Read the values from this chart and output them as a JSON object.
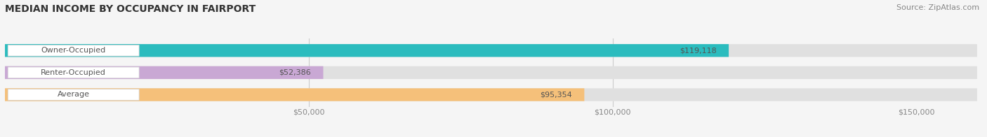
{
  "title": "MEDIAN INCOME BY OCCUPANCY IN FAIRPORT",
  "source": "Source: ZipAtlas.com",
  "categories": [
    "Owner-Occupied",
    "Renter-Occupied",
    "Average"
  ],
  "values": [
    119118,
    52386,
    95354
  ],
  "bar_colors": [
    "#2bbcbe",
    "#c9a8d4",
    "#f5c07a"
  ],
  "labels": [
    "$119,118",
    "$52,386",
    "$95,354"
  ],
  "xmax": 160000,
  "xticklabels": [
    "$50,000",
    "$100,000",
    "$150,000"
  ],
  "xtick_vals": [
    50000,
    100000,
    150000
  ],
  "grid_lines": [
    50000,
    100000
  ],
  "title_fontsize": 10,
  "source_fontsize": 8,
  "label_fontsize": 8,
  "bar_height": 0.58,
  "figsize": [
    14.06,
    1.96
  ],
  "dpi": 100,
  "background_color": "#f5f5f5"
}
